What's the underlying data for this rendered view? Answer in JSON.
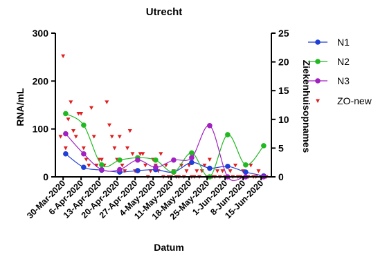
{
  "chart_data": {
    "type": "line",
    "title": "Utrecht",
    "xlabel": "Datum",
    "ylabel": "RNA/mL",
    "y2label": "Ziekenhuisopnames",
    "x_ticks": [
      "30-Mar-2020",
      "6-Apr-2020",
      "13-Apr-2020",
      "20-Apr-2020",
      "27-Apr-2020",
      "4-May-2020",
      "11-May-2020",
      "18-May-2020",
      "25-May-2020",
      "1-Jun-2020",
      "8-Jun-2020",
      "15-Jun-2020"
    ],
    "ylim": [
      0,
      300
    ],
    "y_ticks": [
      0,
      100,
      200,
      300
    ],
    "y2lim": [
      0,
      25
    ],
    "y2_ticks": [
      0,
      5,
      10,
      15,
      20,
      25
    ],
    "legend_position": "right",
    "series": [
      {
        "name": "N1",
        "color": "#1f3fd6",
        "marker": "circle",
        "axis": "left",
        "x": [
          "2020-03-31",
          "2020-04-07",
          "2020-04-14",
          "2020-04-21",
          "2020-04-28",
          "2020-05-05",
          "2020-05-12",
          "2020-05-19",
          "2020-05-26",
          "2020-06-02",
          "2020-06-09",
          "2020-06-16"
        ],
        "y": [
          48,
          20,
          14,
          10,
          13,
          15,
          10,
          30,
          18,
          22,
          10,
          2
        ]
      },
      {
        "name": "N2",
        "color": "#22b822",
        "marker": "circle",
        "axis": "left",
        "x": [
          "2020-03-31",
          "2020-04-07",
          "2020-04-14",
          "2020-04-21",
          "2020-04-28",
          "2020-05-05",
          "2020-05-12",
          "2020-05-19",
          "2020-05-26",
          "2020-06-02",
          "2020-06-09",
          "2020-06-16"
        ],
        "y": [
          132,
          108,
          25,
          35,
          40,
          35,
          10,
          50,
          0,
          88,
          25,
          65
        ]
      },
      {
        "name": "N3",
        "color": "#a020c0",
        "marker": "circle",
        "axis": "left",
        "x": [
          "2020-03-31",
          "2020-04-07",
          "2020-04-14",
          "2020-04-21",
          "2020-04-28",
          "2020-05-05",
          "2020-05-12",
          "2020-05-19",
          "2020-05-26",
          "2020-06-02",
          "2020-06-09",
          "2020-06-16"
        ],
        "y": [
          90,
          48,
          15,
          15,
          35,
          20,
          35,
          40,
          107,
          0,
          0,
          0
        ]
      },
      {
        "name": "ZO-new",
        "color": "#e02020",
        "marker": "triangle-down",
        "axis": "right",
        "x": [
          "2020-03-29",
          "2020-03-30",
          "2020-03-31",
          "2020-04-01",
          "2020-04-02",
          "2020-04-03",
          "2020-04-04",
          "2020-04-05",
          "2020-04-06",
          "2020-04-07",
          "2020-04-08",
          "2020-04-09",
          "2020-04-10",
          "2020-04-11",
          "2020-04-12",
          "2020-04-13",
          "2020-04-14",
          "2020-04-15",
          "2020-04-16",
          "2020-04-17",
          "2020-04-18",
          "2020-04-19",
          "2020-04-20",
          "2020-04-21",
          "2020-04-22",
          "2020-04-23",
          "2020-04-24",
          "2020-04-25",
          "2020-04-26",
          "2020-04-27",
          "2020-04-28",
          "2020-04-29",
          "2020-04-30",
          "2020-05-01",
          "2020-05-02",
          "2020-05-03",
          "2020-05-04",
          "2020-05-05",
          "2020-05-06",
          "2020-05-07",
          "2020-05-08",
          "2020-05-09",
          "2020-05-10",
          "2020-05-11",
          "2020-05-12",
          "2020-05-13",
          "2020-05-14",
          "2020-05-15",
          "2020-05-16",
          "2020-05-17",
          "2020-05-18",
          "2020-05-19",
          "2020-05-20",
          "2020-05-21",
          "2020-05-22",
          "2020-05-23",
          "2020-05-24",
          "2020-05-25",
          "2020-05-26",
          "2020-05-27",
          "2020-05-28",
          "2020-05-29",
          "2020-05-30",
          "2020-05-31",
          "2020-06-01",
          "2020-06-02",
          "2020-06-03",
          "2020-06-04",
          "2020-06-05",
          "2020-06-06",
          "2020-06-07",
          "2020-06-08",
          "2020-06-09",
          "2020-06-10",
          "2020-06-11",
          "2020-06-12",
          "2020-06-13",
          "2020-06-14",
          "2020-06-15",
          "2020-06-16",
          "2020-06-17"
        ],
        "y": [
          7,
          21,
          5,
          10,
          13,
          8,
          7,
          11,
          11,
          5,
          3,
          2,
          12,
          7,
          2,
          3,
          3,
          2,
          13,
          9,
          7,
          5,
          3,
          7,
          2,
          1,
          5,
          8,
          4,
          1,
          3,
          4,
          4,
          2,
          0,
          1,
          3,
          2,
          1,
          4,
          0,
          2,
          0,
          0,
          1,
          0,
          0,
          2,
          0,
          1,
          2,
          0,
          0,
          1,
          0,
          1,
          2,
          0,
          3,
          0,
          0,
          1,
          0,
          1,
          0,
          0,
          1,
          0,
          2,
          0,
          0,
          1,
          0,
          0,
          2,
          0,
          0,
          1,
          0,
          0,
          0
        ]
      }
    ]
  }
}
